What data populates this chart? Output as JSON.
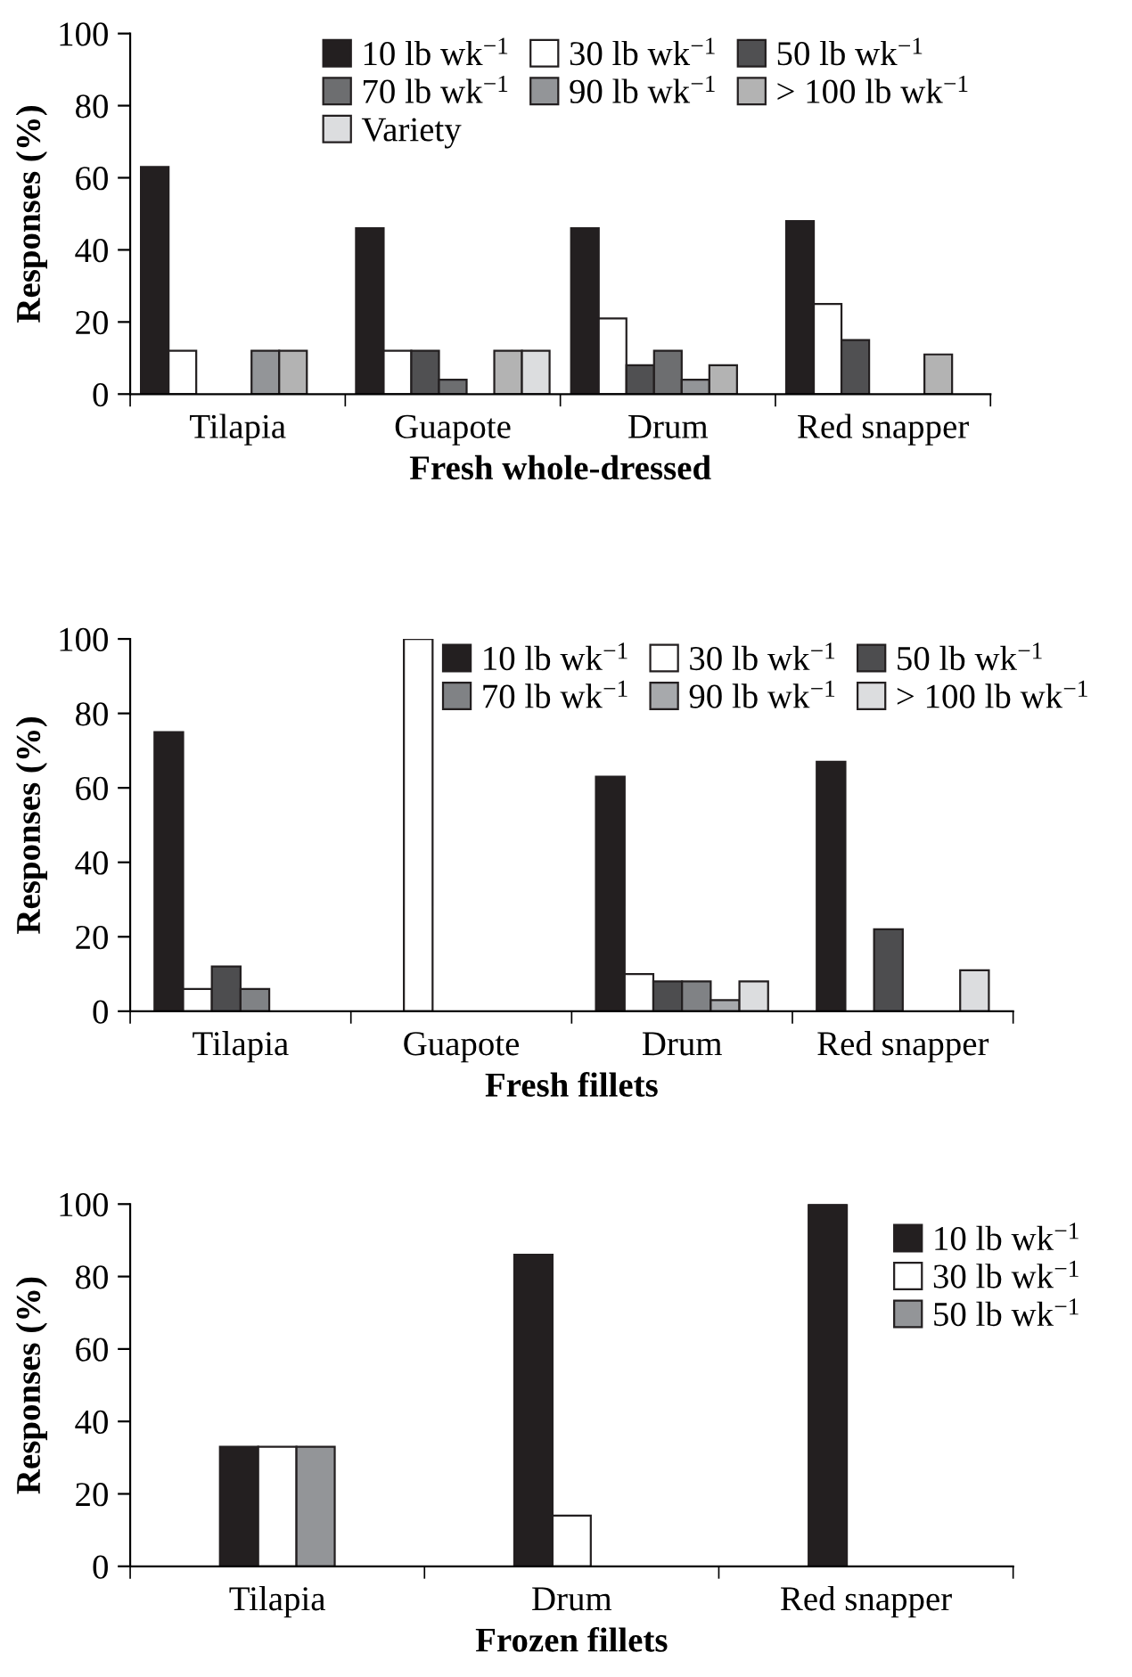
{
  "chart_data": [
    {
      "type": "bar",
      "xlabel": "Fresh whole-dressed",
      "ylabel": "Responses (%)",
      "categories": [
        "Tilapia",
        "Guapote",
        "Drum",
        "Red snapper"
      ],
      "ylim": [
        0,
        100
      ],
      "yticks": [
        0,
        20,
        40,
        60,
        80,
        100
      ],
      "legend": "top",
      "series": [
        {
          "name": "10 lb wk$^{−1}$",
          "color": "#231f20",
          "values": [
            63,
            46,
            46,
            48
          ]
        },
        {
          "name": "30 lb wk$^{−1}$",
          "color": "#ffffff",
          "values": [
            12,
            12,
            21,
            25
          ]
        },
        {
          "name": "50 lb wk$^{−1}$",
          "color": "#505052",
          "values": [
            null,
            12,
            8,
            15
          ]
        },
        {
          "name": "70 lb wk$^{−1}$",
          "color": "#6d6e70",
          "values": [
            null,
            4,
            12,
            null
          ]
        },
        {
          "name": "90 lb wk$^{−1}$",
          "color": "#939598",
          "values": [
            12,
            null,
            4,
            null
          ]
        },
        {
          "name": "> 100 lb wk$^{−1}$",
          "color": "#b3b3b3",
          "values": [
            12,
            12,
            8,
            11
          ]
        },
        {
          "name": "Variety",
          "color": "#dcdddf",
          "values": [
            null,
            12,
            null,
            null
          ]
        }
      ]
    },
    {
      "type": "bar",
      "xlabel": "Fresh fillets",
      "ylabel": "Responses (%)",
      "categories": [
        "Tilapia",
        "Guapote",
        "Drum",
        "Red snapper"
      ],
      "ylim": [
        0,
        100
      ],
      "yticks": [
        0,
        20,
        40,
        60,
        80,
        100
      ],
      "legend": "top right",
      "series": [
        {
          "name": "10 lb wk$^{−1}$",
          "color": "#231f20",
          "values": [
            75,
            null,
            63,
            67
          ]
        },
        {
          "name": "30 lb wk$^{−1}$",
          "color": "#ffffff",
          "values": [
            6,
            100,
            10,
            null
          ]
        },
        {
          "name": "50 lb wk$^{−1}$",
          "color": "#4d4d4f",
          "values": [
            12,
            null,
            8,
            22
          ]
        },
        {
          "name": "70 lb wk$^{−1}$",
          "color": "#808285",
          "values": [
            6,
            null,
            8,
            null
          ]
        },
        {
          "name": "90 lb wk$^{−1}$",
          "color": "#a7a9ac",
          "values": [
            null,
            null,
            3,
            null
          ]
        },
        {
          "name": "> 100 lb wk$^{−1}$",
          "color": "#dcdddf",
          "values": [
            null,
            null,
            8,
            11
          ]
        }
      ]
    },
    {
      "type": "bar",
      "xlabel": "Frozen fillets",
      "ylabel": "Responses (%)",
      "categories": [
        "Tilapia",
        "Drum",
        "Red snapper"
      ],
      "ylim": [
        0,
        100
      ],
      "yticks": [
        0,
        20,
        40,
        60,
        80,
        100
      ],
      "legend": "right",
      "series": [
        {
          "name": "10 lb wk$^{−1}$",
          "color": "#231f20",
          "values": [
            33,
            86,
            100
          ]
        },
        {
          "name": "30 lb wk$^{−1}$",
          "color": "#ffffff",
          "values": [
            33,
            14,
            null
          ]
        },
        {
          "name": "50 lb wk$^{−1}$",
          "color": "#939598",
          "values": [
            33,
            null,
            null
          ]
        }
      ]
    }
  ]
}
